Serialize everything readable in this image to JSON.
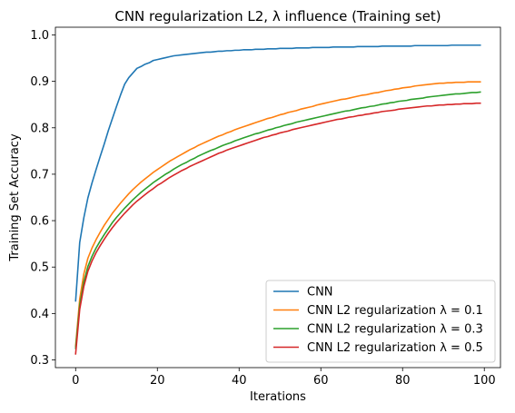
{
  "chart_data": {
    "type": "line",
    "title": "CNN regularization L2, λ influence (Training set)",
    "xlabel": "Iterations",
    "ylabel": "Training Set Accuracy",
    "xlim": [
      -4.95,
      103.95
    ],
    "ylim": [
      0.2834,
      1.0166
    ],
    "xticks": [
      0,
      20,
      40,
      60,
      80,
      100
    ],
    "yticks": [
      0.3,
      0.4,
      0.5,
      0.6,
      0.7,
      0.8,
      0.9,
      1.0
    ],
    "xtick_labels": [
      "0",
      "20",
      "40",
      "60",
      "80",
      "100"
    ],
    "ytick_labels": [
      "0.3",
      "0.4",
      "0.5",
      "0.6",
      "0.7",
      "0.8",
      "0.9",
      "1.0"
    ],
    "grid": false,
    "legend": {
      "position": "lower right"
    },
    "x": [
      0,
      1,
      2,
      3,
      4,
      5,
      6,
      7,
      8,
      9,
      10,
      11,
      12,
      13,
      14,
      15,
      16,
      17,
      18,
      19,
      20,
      21,
      22,
      23,
      24,
      25,
      26,
      27,
      28,
      29,
      30,
      31,
      32,
      33,
      34,
      35,
      36,
      37,
      38,
      39,
      40,
      41,
      42,
      43,
      44,
      45,
      46,
      47,
      48,
      49,
      50,
      51,
      52,
      53,
      54,
      55,
      56,
      57,
      58,
      59,
      60,
      61,
      62,
      63,
      64,
      65,
      66,
      67,
      68,
      69,
      70,
      71,
      72,
      73,
      74,
      75,
      76,
      77,
      78,
      79,
      80,
      81,
      82,
      83,
      84,
      85,
      86,
      87,
      88,
      89,
      90,
      91,
      92,
      93,
      94,
      95,
      96,
      97,
      98,
      99
    ],
    "series": [
      {
        "name": "CNN",
        "color": "#1f77b4",
        "values": [
          0.427,
          0.553,
          0.606,
          0.649,
          0.681,
          0.71,
          0.738,
          0.765,
          0.794,
          0.82,
          0.846,
          0.871,
          0.894,
          0.908,
          0.918,
          0.928,
          0.932,
          0.937,
          0.94,
          0.945,
          0.947,
          0.949,
          0.951,
          0.953,
          0.955,
          0.956,
          0.957,
          0.958,
          0.959,
          0.96,
          0.961,
          0.962,
          0.963,
          0.963,
          0.964,
          0.965,
          0.965,
          0.966,
          0.966,
          0.967,
          0.967,
          0.968,
          0.968,
          0.968,
          0.969,
          0.969,
          0.969,
          0.97,
          0.97,
          0.97,
          0.971,
          0.971,
          0.971,
          0.971,
          0.972,
          0.972,
          0.972,
          0.972,
          0.973,
          0.973,
          0.973,
          0.973,
          0.973,
          0.974,
          0.974,
          0.974,
          0.974,
          0.974,
          0.974,
          0.975,
          0.975,
          0.975,
          0.975,
          0.975,
          0.975,
          0.976,
          0.976,
          0.976,
          0.976,
          0.976,
          0.976,
          0.976,
          0.976,
          0.977,
          0.977,
          0.977,
          0.977,
          0.977,
          0.977,
          0.977,
          0.977,
          0.977,
          0.978,
          0.978,
          0.978,
          0.978,
          0.978,
          0.978,
          0.978,
          0.978
        ]
      },
      {
        "name": "CNN L2 regularization λ = 0.1",
        "color": "#ff7f0e",
        "values": [
          0.33,
          0.431,
          0.485,
          0.519,
          0.541,
          0.559,
          0.575,
          0.59,
          0.603,
          0.616,
          0.627,
          0.638,
          0.648,
          0.658,
          0.667,
          0.675,
          0.683,
          0.69,
          0.697,
          0.704,
          0.71,
          0.716,
          0.722,
          0.728,
          0.733,
          0.738,
          0.743,
          0.748,
          0.753,
          0.757,
          0.762,
          0.766,
          0.77,
          0.774,
          0.778,
          0.782,
          0.785,
          0.789,
          0.792,
          0.796,
          0.799,
          0.802,
          0.805,
          0.808,
          0.811,
          0.814,
          0.817,
          0.82,
          0.822,
          0.825,
          0.828,
          0.83,
          0.833,
          0.835,
          0.837,
          0.84,
          0.842,
          0.844,
          0.846,
          0.849,
          0.851,
          0.853,
          0.855,
          0.857,
          0.859,
          0.861,
          0.862,
          0.864,
          0.866,
          0.868,
          0.87,
          0.871,
          0.873,
          0.875,
          0.876,
          0.878,
          0.88,
          0.881,
          0.883,
          0.884,
          0.886,
          0.887,
          0.888,
          0.89,
          0.891,
          0.892,
          0.893,
          0.894,
          0.895,
          0.896,
          0.896,
          0.897,
          0.897,
          0.898,
          0.898,
          0.898,
          0.899,
          0.899,
          0.899,
          0.899
        ]
      },
      {
        "name": "CNN L2 regularization λ = 0.3",
        "color": "#2ca02c",
        "values": [
          0.325,
          0.418,
          0.468,
          0.501,
          0.523,
          0.541,
          0.556,
          0.57,
          0.583,
          0.596,
          0.607,
          0.617,
          0.627,
          0.636,
          0.645,
          0.653,
          0.661,
          0.668,
          0.675,
          0.682,
          0.688,
          0.694,
          0.7,
          0.705,
          0.711,
          0.716,
          0.721,
          0.725,
          0.73,
          0.734,
          0.739,
          0.743,
          0.747,
          0.751,
          0.754,
          0.758,
          0.762,
          0.765,
          0.768,
          0.772,
          0.775,
          0.778,
          0.781,
          0.784,
          0.787,
          0.789,
          0.792,
          0.795,
          0.797,
          0.8,
          0.802,
          0.805,
          0.807,
          0.809,
          0.812,
          0.814,
          0.816,
          0.818,
          0.82,
          0.822,
          0.824,
          0.826,
          0.828,
          0.83,
          0.832,
          0.834,
          0.836,
          0.837,
          0.839,
          0.841,
          0.843,
          0.844,
          0.846,
          0.847,
          0.849,
          0.851,
          0.852,
          0.854,
          0.855,
          0.857,
          0.858,
          0.859,
          0.861,
          0.862,
          0.863,
          0.864,
          0.866,
          0.867,
          0.868,
          0.869,
          0.87,
          0.871,
          0.872,
          0.873,
          0.873,
          0.874,
          0.875,
          0.876,
          0.876,
          0.877
        ]
      },
      {
        "name": "CNN L2 regularization λ = 0.5",
        "color": "#d62728",
        "values": [
          0.313,
          0.409,
          0.458,
          0.491,
          0.513,
          0.531,
          0.546,
          0.56,
          0.573,
          0.585,
          0.596,
          0.606,
          0.616,
          0.625,
          0.634,
          0.642,
          0.649,
          0.656,
          0.663,
          0.669,
          0.676,
          0.681,
          0.687,
          0.693,
          0.698,
          0.703,
          0.708,
          0.712,
          0.717,
          0.721,
          0.725,
          0.729,
          0.733,
          0.737,
          0.741,
          0.745,
          0.748,
          0.752,
          0.755,
          0.758,
          0.761,
          0.764,
          0.767,
          0.77,
          0.773,
          0.776,
          0.779,
          0.781,
          0.784,
          0.786,
          0.789,
          0.791,
          0.793,
          0.796,
          0.798,
          0.8,
          0.802,
          0.804,
          0.806,
          0.808,
          0.81,
          0.812,
          0.814,
          0.816,
          0.818,
          0.819,
          0.821,
          0.823,
          0.824,
          0.826,
          0.827,
          0.829,
          0.83,
          0.832,
          0.833,
          0.835,
          0.836,
          0.837,
          0.838,
          0.84,
          0.841,
          0.842,
          0.843,
          0.844,
          0.845,
          0.846,
          0.847,
          0.847,
          0.848,
          0.849,
          0.849,
          0.85,
          0.85,
          0.851,
          0.851,
          0.852,
          0.852,
          0.852,
          0.853,
          0.853
        ]
      }
    ]
  }
}
